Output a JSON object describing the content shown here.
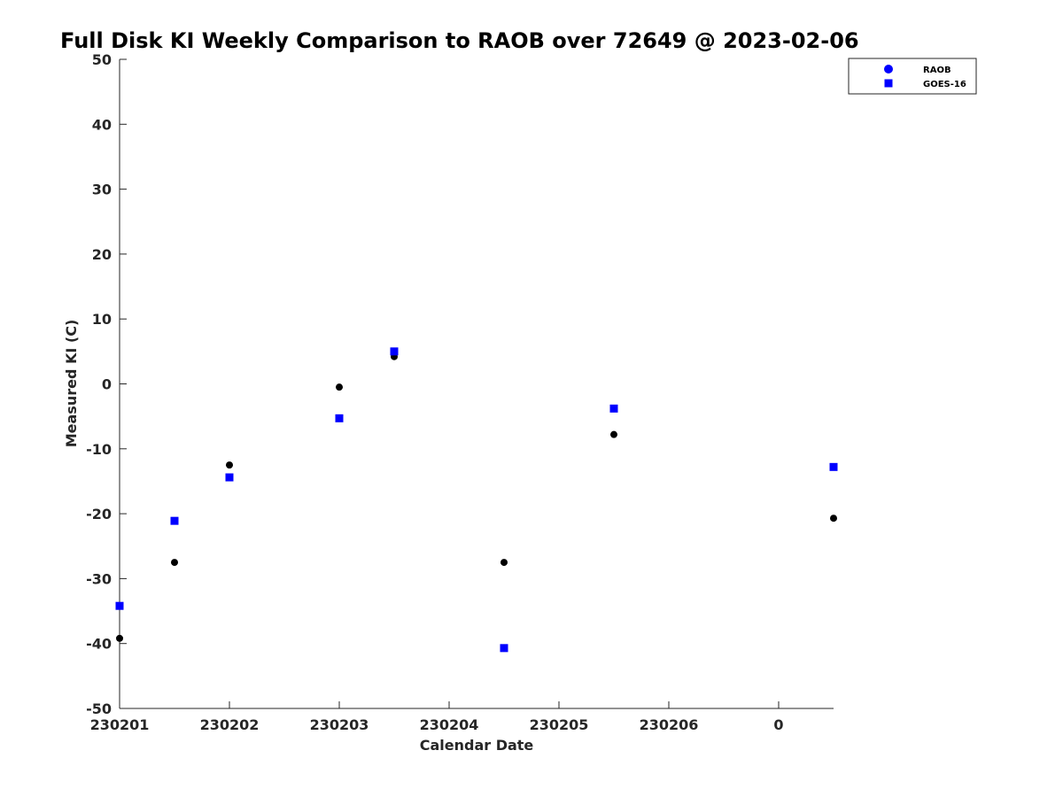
{
  "chart_data": {
    "type": "scatter",
    "title": "Full Disk KI Weekly Comparison to RAOB over 72649 @ 2023-02-06",
    "xlabel": "Calendar Date",
    "ylabel": "Measured KI (C)",
    "xlim": [
      0,
      6.5
    ],
    "ylim": [
      -50,
      50
    ],
    "x_ticks": [
      {
        "value": 0,
        "label": "230201"
      },
      {
        "value": 1,
        "label": "230202"
      },
      {
        "value": 2,
        "label": "230203"
      },
      {
        "value": 3,
        "label": "230204"
      },
      {
        "value": 4,
        "label": "230205"
      },
      {
        "value": 5,
        "label": "230206"
      },
      {
        "value": 6,
        "label": "0"
      }
    ],
    "y_ticks": [
      50,
      40,
      30,
      20,
      10,
      0,
      -10,
      -20,
      -30,
      -40,
      -50
    ],
    "grid": false,
    "legend_position": "top-right",
    "series": [
      {
        "name": "RAOB",
        "marker": "circle",
        "color": "#000000",
        "legend_color": "#0000ff",
        "x": [
          0,
          0.5,
          1,
          2,
          2.5,
          3.5,
          4.5,
          6.5
        ],
        "y": [
          -39.2,
          -27.5,
          -12.5,
          -0.5,
          4.2,
          -27.5,
          -7.8,
          -20.7
        ]
      },
      {
        "name": "GOES-16",
        "marker": "square",
        "color": "#0000ff",
        "legend_color": "#0000ff",
        "x": [
          0,
          0.5,
          1,
          2,
          2.5,
          3.5,
          4.5,
          6.5
        ],
        "y": [
          -34.2,
          -21.1,
          -14.4,
          -5.3,
          5.0,
          -40.7,
          -3.8,
          -12.8
        ]
      }
    ]
  }
}
